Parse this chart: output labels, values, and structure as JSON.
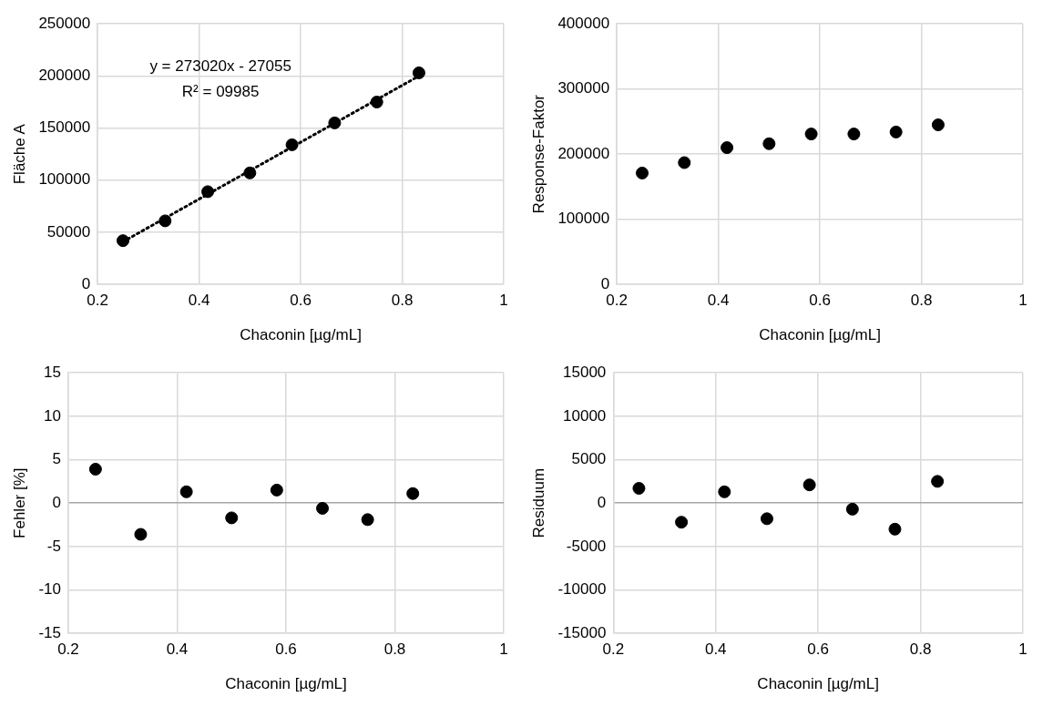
{
  "chart_data": [
    {
      "type": "scatter",
      "xlabel": "Chaconin [µg/mL]",
      "ylabel": "Fläche A",
      "xlim": [
        0.2,
        1
      ],
      "xticks": [
        0.2,
        0.4,
        0.6,
        0.8,
        1
      ],
      "ylim": [
        0,
        250000
      ],
      "yticks": [
        0,
        50000,
        100000,
        150000,
        200000,
        250000
      ],
      "grid": true,
      "legend": false,
      "marker": "circle",
      "annotations": [
        "y = 273020x - 27055",
        "R² = 09985"
      ],
      "series": [
        {
          "type": "scatter",
          "color": "#000000",
          "x": [
            0.25,
            0.333,
            0.417,
            0.5,
            0.583,
            0.667,
            0.75,
            0.833
          ],
          "values": [
            42000,
            61000,
            89000,
            107000,
            134000,
            155000,
            175000,
            203000
          ]
        },
        {
          "type": "line",
          "color": "#000000",
          "line_style": "dotted",
          "marker": "none",
          "x": [
            0.25,
            0.833
          ],
          "values": [
            41000,
            200000
          ]
        }
      ]
    },
    {
      "type": "scatter",
      "xlabel": "Chaconin [µg/mL]",
      "ylabel": "Response-Faktor",
      "xlim": [
        0.2,
        1
      ],
      "xticks": [
        0.2,
        0.4,
        0.6,
        0.8,
        1
      ],
      "ylim": [
        0,
        400000
      ],
      "yticks": [
        0,
        100000,
        200000,
        300000,
        400000
      ],
      "grid": true,
      "legend": false,
      "marker": "circle",
      "series": [
        {
          "type": "scatter",
          "color": "#000000",
          "x": [
            0.25,
            0.333,
            0.417,
            0.5,
            0.583,
            0.667,
            0.75,
            0.833
          ],
          "values": [
            171000,
            187000,
            210000,
            216000,
            231000,
            231000,
            234000,
            245000
          ]
        }
      ]
    },
    {
      "type": "scatter",
      "xlabel": "Chaconin [µg/mL]",
      "ylabel": "Fehler [%]",
      "xlim": [
        0.2,
        1
      ],
      "xticks": [
        0.2,
        0.4,
        0.6,
        0.8,
        1
      ],
      "ylim": [
        -15,
        15
      ],
      "yticks": [
        -15,
        -10,
        -5,
        0,
        5,
        10,
        15
      ],
      "grid": true,
      "legend": false,
      "marker": "circle",
      "series": [
        {
          "type": "scatter",
          "color": "#000000",
          "x": [
            0.25,
            0.333,
            0.417,
            0.5,
            0.583,
            0.667,
            0.75,
            0.833
          ],
          "values": [
            3.9,
            -3.6,
            1.3,
            -1.7,
            1.5,
            -0.6,
            -1.9,
            1.1
          ]
        }
      ]
    },
    {
      "type": "scatter",
      "xlabel": "Chaconin [µg/mL]",
      "ylabel": "Residuum",
      "xlim": [
        0.2,
        1
      ],
      "xticks": [
        0.2,
        0.4,
        0.6,
        0.8,
        1
      ],
      "ylim": [
        -15000,
        15000
      ],
      "yticks": [
        -15000,
        -10000,
        -5000,
        0,
        5000,
        10000,
        15000
      ],
      "grid": true,
      "legend": false,
      "marker": "circle",
      "series": [
        {
          "type": "scatter",
          "color": "#000000",
          "x": [
            0.25,
            0.333,
            0.417,
            0.5,
            0.583,
            0.667,
            0.75,
            0.833
          ],
          "values": [
            1700,
            -2200,
            1300,
            -1800,
            2100,
            -700,
            -3000,
            2500
          ]
        }
      ]
    }
  ]
}
